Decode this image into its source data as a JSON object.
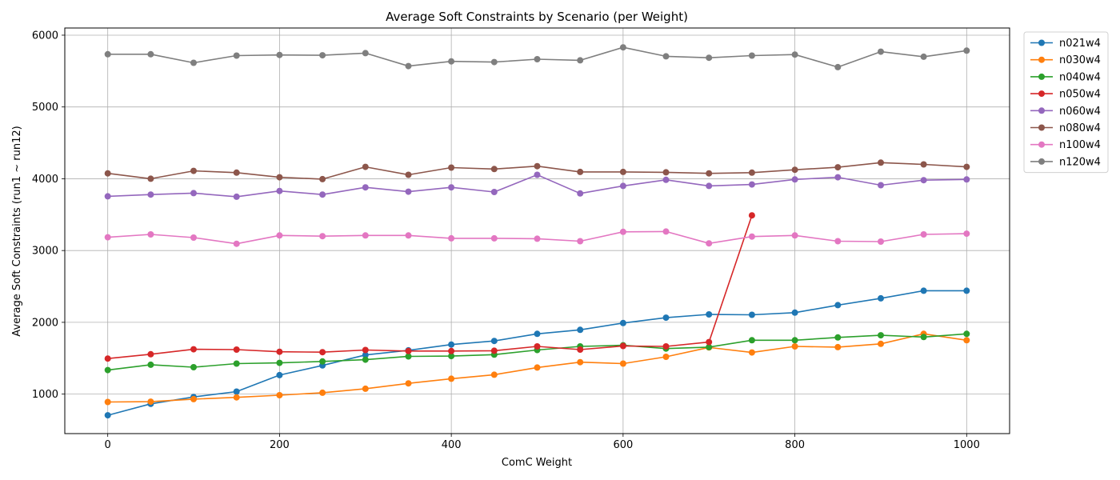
{
  "chart_data": {
    "type": "line",
    "title": "Average Soft Constraints by Scenario (per Weight)",
    "xlabel": "ComC Weight",
    "ylabel": "Average Soft Constraints (run1 ~ run12)",
    "xlim": [
      -50,
      1050
    ],
    "ylim": [
      450,
      6100
    ],
    "xticks": [
      0,
      200,
      400,
      600,
      800,
      1000
    ],
    "yticks": [
      1000,
      2000,
      3000,
      4000,
      5000,
      6000
    ],
    "grid": true,
    "legend_position": "upper-right-outside",
    "x": [
      0,
      50,
      100,
      150,
      200,
      250,
      300,
      350,
      400,
      450,
      500,
      550,
      600,
      650,
      700,
      750,
      800,
      850,
      900,
      950,
      1000
    ],
    "series": [
      {
        "name": "n021w4",
        "color": "#1f77b4",
        "values": [
          705,
          865,
          960,
          1035,
          1265,
          1400,
          1545,
          1610,
          1690,
          1740,
          1840,
          1895,
          1990,
          2065,
          2110,
          2105,
          2135,
          2240,
          2335,
          2440,
          2440
        ]
      },
      {
        "name": "n030w4",
        "color": "#ff7f0e",
        "values": [
          890,
          895,
          930,
          955,
          985,
          1020,
          1075,
          1150,
          1215,
          1270,
          1370,
          1445,
          1425,
          1520,
          1650,
          1580,
          1665,
          1655,
          1700,
          1840,
          1750
        ]
      },
      {
        "name": "n040w4",
        "color": "#2ca02c",
        "values": [
          1335,
          1410,
          1375,
          1425,
          1435,
          1455,
          1480,
          1525,
          1530,
          1550,
          1615,
          1665,
          1680,
          1635,
          1655,
          1750,
          1750,
          1790,
          1820,
          1795,
          1840
        ]
      },
      {
        "name": "n050w4",
        "color": "#d62728",
        "values": [
          1495,
          1555,
          1625,
          1620,
          1590,
          1585,
          1615,
          1600,
          1600,
          1605,
          1665,
          1620,
          1670,
          1665,
          1725,
          3490,
          null,
          null,
          null,
          null,
          null
        ]
      },
      {
        "name": "n060w4",
        "color": "#9467bd",
        "values": [
          3755,
          3780,
          3800,
          3750,
          3830,
          3780,
          3880,
          3820,
          3880,
          3815,
          4055,
          3795,
          3900,
          3985,
          3900,
          3920,
          3990,
          4020,
          3910,
          3980,
          3990
        ]
      },
      {
        "name": "n080w4",
        "color": "#8c564b",
        "values": [
          4075,
          4000,
          4110,
          4085,
          4020,
          3995,
          4165,
          4055,
          4155,
          4135,
          4175,
          4095,
          4095,
          4090,
          4075,
          4085,
          4125,
          4160,
          4225,
          4200,
          4165
        ]
      },
      {
        "name": "n100w4",
        "color": "#e377c2",
        "values": [
          3185,
          3225,
          3180,
          3095,
          3210,
          3200,
          3210,
          3210,
          3170,
          3170,
          3165,
          3130,
          3260,
          3265,
          3100,
          3195,
          3210,
          3130,
          3125,
          3225,
          3235
        ]
      },
      {
        "name": "n120w4",
        "color": "#7f7f7f",
        "values": [
          5735,
          5735,
          5615,
          5715,
          5725,
          5720,
          5750,
          5570,
          5635,
          5625,
          5665,
          5650,
          5830,
          5705,
          5685,
          5715,
          5730,
          5555,
          5770,
          5700,
          5785
        ]
      }
    ]
  }
}
